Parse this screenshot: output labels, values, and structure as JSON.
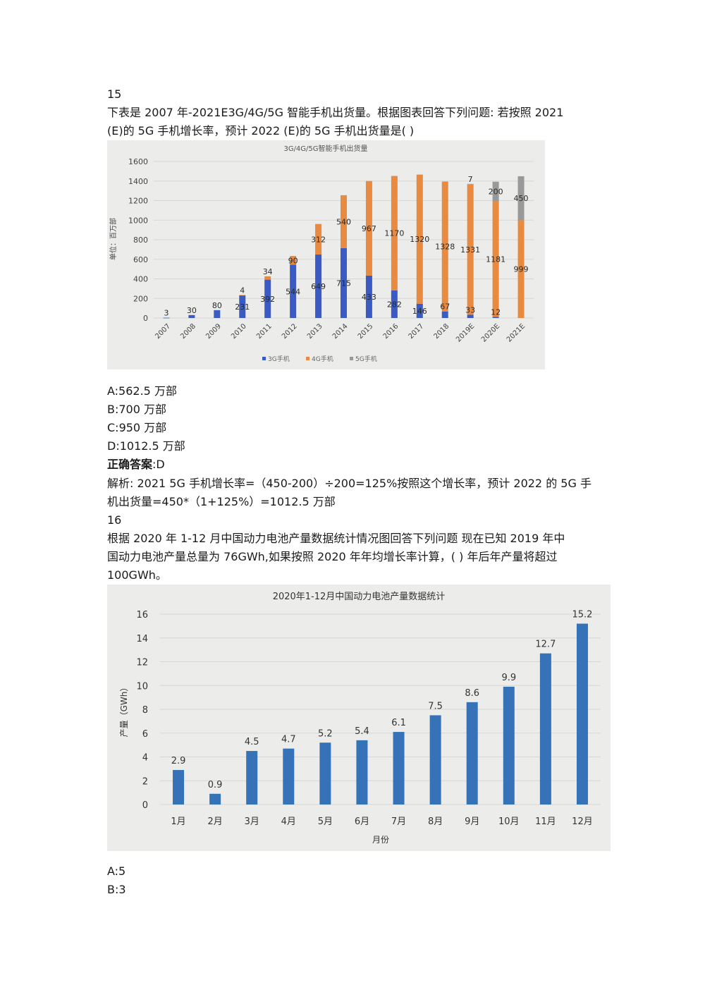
{
  "q15": {
    "number": "15",
    "stem_line1": "下表是 2007 年-2021E3G/4G/5G 智能手机出货量。根据图表回答下列问题: 若按照 2021",
    "stem_line2": "(E)的 5G 手机增长率，预计 2022 (E)的 5G 手机出货量是( )",
    "options": [
      "A:562.5 万部",
      "B:700 万部",
      "C:950 万部",
      "D:1012.5 万部"
    ],
    "answer_label": "正确答案",
    "answer_value": ":D",
    "analysis_line1": "解析: 2021 5G 手机增长率=（450-200）÷200=125%按照这个增长率，预计 2022 的 5G 手",
    "analysis_line2": "机出货量=450*（1+125%）=1012.5 万部"
  },
  "q16": {
    "number": "16",
    "stem_line1": "根据 2020 年 1-12 月中国动力电池产量数据统计情况图回答下列问题 现在已知 2019 年中",
    "stem_line2": "国动力电池产量总量为 76GWh,如果按照 2020 年年均增长率计算，( ) 年后年产量将超过",
    "stem_line3": "100GWh。",
    "options": [
      "A:5",
      "B:3"
    ]
  },
  "chart_data": [
    {
      "type": "bar",
      "stacked": true,
      "title": "3G/4G/5G智能手机出货量",
      "ylabel": "单位：百万部",
      "xlabel": "",
      "ylim": [
        0,
        1600
      ],
      "yticks": [
        0,
        200,
        400,
        600,
        800,
        1000,
        1200,
        1400,
        1600
      ],
      "grid": true,
      "legend_position": "bottom",
      "categories": [
        "2007",
        "2008",
        "2009",
        "2010",
        "2011",
        "2012",
        "2013",
        "2014",
        "2015",
        "2016",
        "2017",
        "2018",
        "2019E",
        "2020E",
        "2021E"
      ],
      "series": [
        {
          "name": "3G手机",
          "color": "#3a5bc4",
          "values": [
            3,
            30,
            80,
            231,
            392,
            544,
            649,
            715,
            433,
            282,
            146,
            67,
            33,
            12,
            0
          ]
        },
        {
          "name": "4G手机",
          "color": "#e88a3f",
          "values": [
            0,
            0,
            0,
            4,
            34,
            90,
            312,
            540,
            967,
            1170,
            1320,
            1328,
            1331,
            1181,
            999
          ]
        },
        {
          "name": "5G手机",
          "color": "#999999",
          "values": [
            0,
            0,
            0,
            0,
            0,
            0,
            0,
            0,
            0,
            0,
            0,
            0,
            7,
            200,
            450
          ]
        }
      ],
      "data_labels": {
        "3G手机": [
          "3",
          "30",
          "80",
          "231",
          "392",
          "544",
          "649",
          "715",
          "433",
          "282",
          "146",
          "67",
          "33",
          "12",
          ""
        ],
        "4G手机": [
          "",
          "",
          "",
          "4",
          "34",
          "90",
          "312",
          "540",
          "967",
          "1170",
          "1320",
          "1328",
          "1331",
          "1181",
          "999"
        ],
        "5G手机": [
          "",
          "",
          "",
          "",
          "",
          "",
          "",
          "",
          "",
          "",
          "",
          "",
          "7",
          "200",
          "450"
        ]
      }
    },
    {
      "type": "bar",
      "title": "2020年1-12月中国动力电池产量数据统计",
      "ylabel": "产量（GWh）",
      "xlabel": "月份",
      "ylim": [
        0,
        16
      ],
      "yticks": [
        0,
        2,
        4,
        6,
        8,
        10,
        12,
        14,
        16
      ],
      "grid": true,
      "color": "#3572b8",
      "categories": [
        "1月",
        "2月",
        "3月",
        "4月",
        "5月",
        "6月",
        "7月",
        "8月",
        "9月",
        "10月",
        "11月",
        "12月"
      ],
      "values": [
        2.9,
        0.9,
        4.5,
        4.7,
        5.2,
        5.4,
        6.1,
        7.5,
        8.6,
        9.9,
        12.7,
        15.2
      ]
    }
  ]
}
